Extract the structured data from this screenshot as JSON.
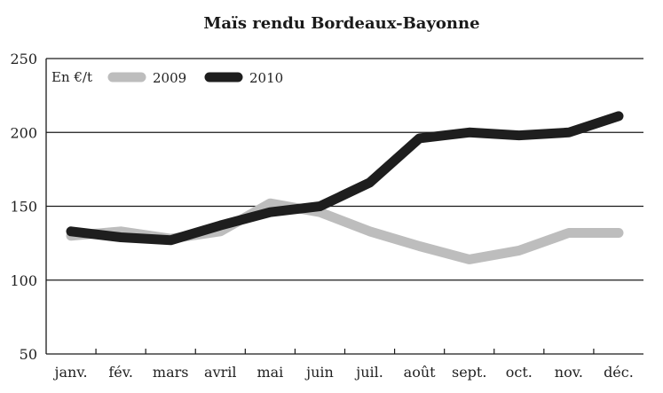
{
  "chart_data": {
    "type": "line",
    "title": "Maïs rendu Bordeaux-Bayonne",
    "unit_label": "En €/t",
    "categories": [
      "janv.",
      "fév.",
      "mars",
      "avril",
      "mai",
      "juin",
      "juil.",
      "août",
      "sept.",
      "oct.",
      "nov.",
      "déc."
    ],
    "ylim": [
      50,
      250
    ],
    "yticks": [
      50,
      100,
      150,
      200,
      250
    ],
    "grid": "horizontal",
    "legend_position": "top-left",
    "series": [
      {
        "name": "2009",
        "color": "#bdbdbd",
        "values": [
          130,
          133,
          128,
          133,
          152,
          146,
          133,
          123,
          114,
          120,
          132,
          132
        ]
      },
      {
        "name": "2010",
        "color": "#1e1e1e",
        "values": [
          133,
          129,
          127,
          137,
          146,
          150,
          166,
          196,
          200,
          198,
          200,
          211
        ]
      }
    ]
  }
}
